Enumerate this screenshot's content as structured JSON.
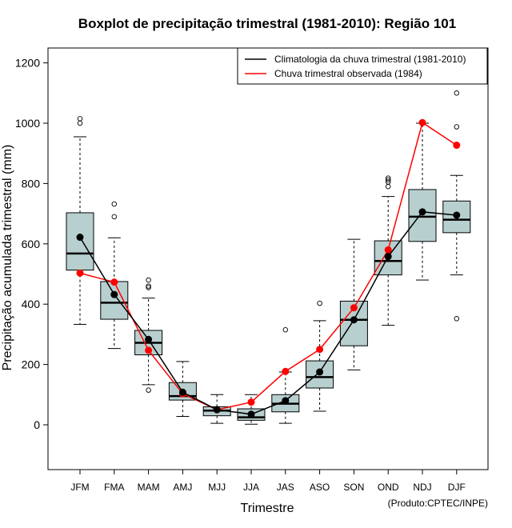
{
  "chart_data": {
    "type": "boxplot",
    "title": "Boxplot de precipitação trimestral (1981-2010): Região 101",
    "xlabel": "Trimestre",
    "ylabel": "Precipitação acumulada trimestral (mm)",
    "credit": "(Produto:CPTEC/INPE)",
    "ylim": [
      -150,
      1250
    ],
    "yticks": [
      0,
      200,
      400,
      600,
      800,
      1000,
      1200
    ],
    "categories": [
      "JFM",
      "FMA",
      "MAM",
      "AMJ",
      "MJJ",
      "JJA",
      "JAS",
      "ASO",
      "SON",
      "OND",
      "NDJ",
      "DJF"
    ],
    "boxes": [
      {
        "min": 333,
        "q1": 513,
        "median": 568,
        "q3": 703,
        "max": 955,
        "outliers": [
          1000,
          1015
        ]
      },
      {
        "min": 253,
        "q1": 350,
        "median": 405,
        "q3": 475,
        "max": 620,
        "outliers": [
          690,
          732
        ]
      },
      {
        "min": 133,
        "q1": 232,
        "median": 272,
        "q3": 313,
        "max": 420,
        "outliers": [
          115,
          455,
          460,
          480
        ]
      },
      {
        "min": 28,
        "q1": 82,
        "median": 95,
        "q3": 140,
        "max": 210,
        "outliers": []
      },
      {
        "min": 5,
        "q1": 30,
        "median": 47,
        "q3": 60,
        "max": 100,
        "outliers": []
      },
      {
        "min": 2,
        "q1": 15,
        "median": 25,
        "q3": 53,
        "max": 100,
        "outliers": []
      },
      {
        "min": 5,
        "q1": 43,
        "median": 70,
        "q3": 100,
        "max": 175,
        "outliers": [
          315
        ]
      },
      {
        "min": 45,
        "q1": 122,
        "median": 158,
        "q3": 212,
        "max": 345,
        "outliers": [
          403
        ]
      },
      {
        "min": 182,
        "q1": 262,
        "median": 348,
        "q3": 410,
        "max": 615,
        "outliers": []
      },
      {
        "min": 330,
        "q1": 497,
        "median": 543,
        "q3": 610,
        "max": 757,
        "outliers": [
          790,
          805,
          812,
          818
        ]
      },
      {
        "min": 480,
        "q1": 608,
        "median": 690,
        "q3": 780,
        "max": 1000,
        "outliers": []
      },
      {
        "min": 497,
        "q1": 637,
        "median": 680,
        "q3": 742,
        "max": 827,
        "outliers": [
          352,
          988,
          1100
        ]
      }
    ],
    "series": [
      {
        "name": "Climatologia da chuva trimestral (1981-2010)",
        "color": "#000000",
        "values": [
          622,
          432,
          283,
          108,
          50,
          35,
          80,
          175,
          348,
          558,
          706,
          695
        ]
      },
      {
        "name": "Chuva trimestral observada (1984)",
        "color": "#ff0000",
        "values": [
          503,
          473,
          247,
          103,
          50,
          75,
          177,
          250,
          388,
          580,
          1002,
          927
        ]
      }
    ],
    "box_fill": "#b8cfcf",
    "legend_position": "top-right"
  }
}
